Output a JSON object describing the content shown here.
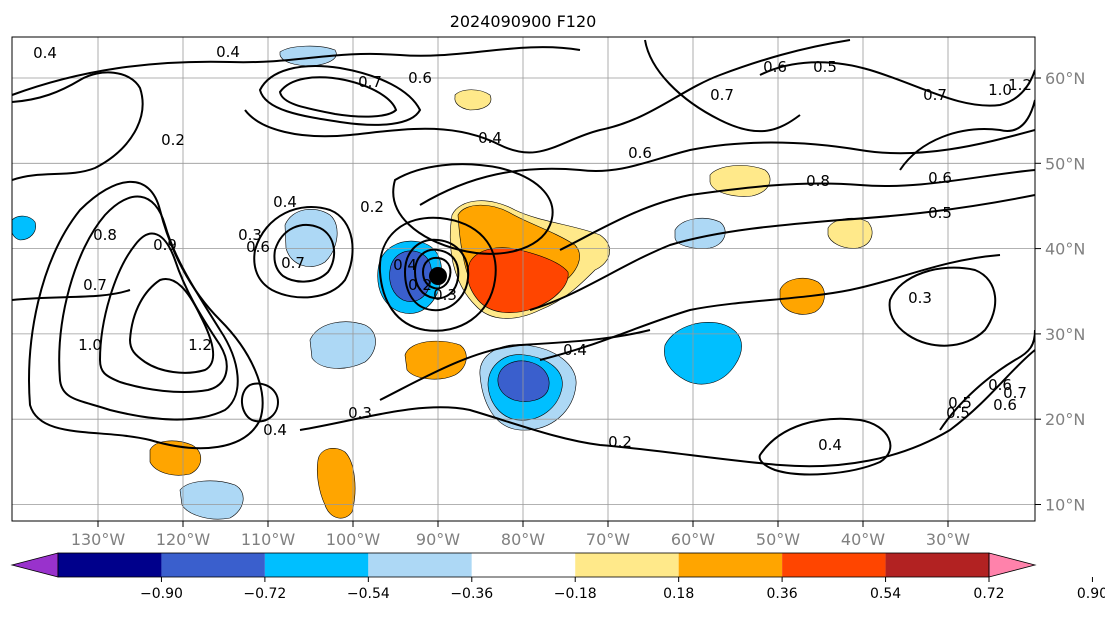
{
  "title": "2024090900 F120",
  "lon_labels": [
    "130°W",
    "120°W",
    "110°W",
    "100°W",
    "90°W",
    "80°W",
    "70°W",
    "60°W",
    "50°W",
    "40°W",
    "30°W"
  ],
  "lat_labels": [
    "60°N",
    "50°N",
    "40°N",
    "30°N",
    "20°N",
    "10°N"
  ],
  "colorbar": {
    "tick_labels": [
      "−0.90",
      "−0.72",
      "−0.54",
      "−0.36",
      "−0.18",
      "0.18",
      "0.36",
      "0.54",
      "0.72",
      "0.90"
    ],
    "colors": [
      "#9932cc",
      "#00008b",
      "#3a5fcd",
      "#00bfff",
      "#add8f5",
      "#ffffff",
      "#ffe98a",
      "#ffa500",
      "#ff4500",
      "#b22222",
      "#ff82ab"
    ]
  },
  "contour_labels": [
    "0.4",
    "0.4",
    "0.7",
    "0.6",
    "0.6",
    "0.7",
    "0.5",
    "0.6",
    "0.7",
    "1.2",
    "1.0",
    "0.2",
    "0.4",
    "0.4",
    "0.7",
    "0.6",
    "0.8",
    "0.5",
    "0.6",
    "0.2",
    "0.3",
    "0.4",
    "0.2",
    "0.3",
    "0.4",
    "0.5",
    "0.6",
    "0.8",
    "0.7",
    "0.9",
    "1.0",
    "1.2",
    "0.4",
    "0.3",
    "0.2",
    "0.4",
    "0.3",
    "0.5",
    "0.6",
    "0.7"
  ]
}
